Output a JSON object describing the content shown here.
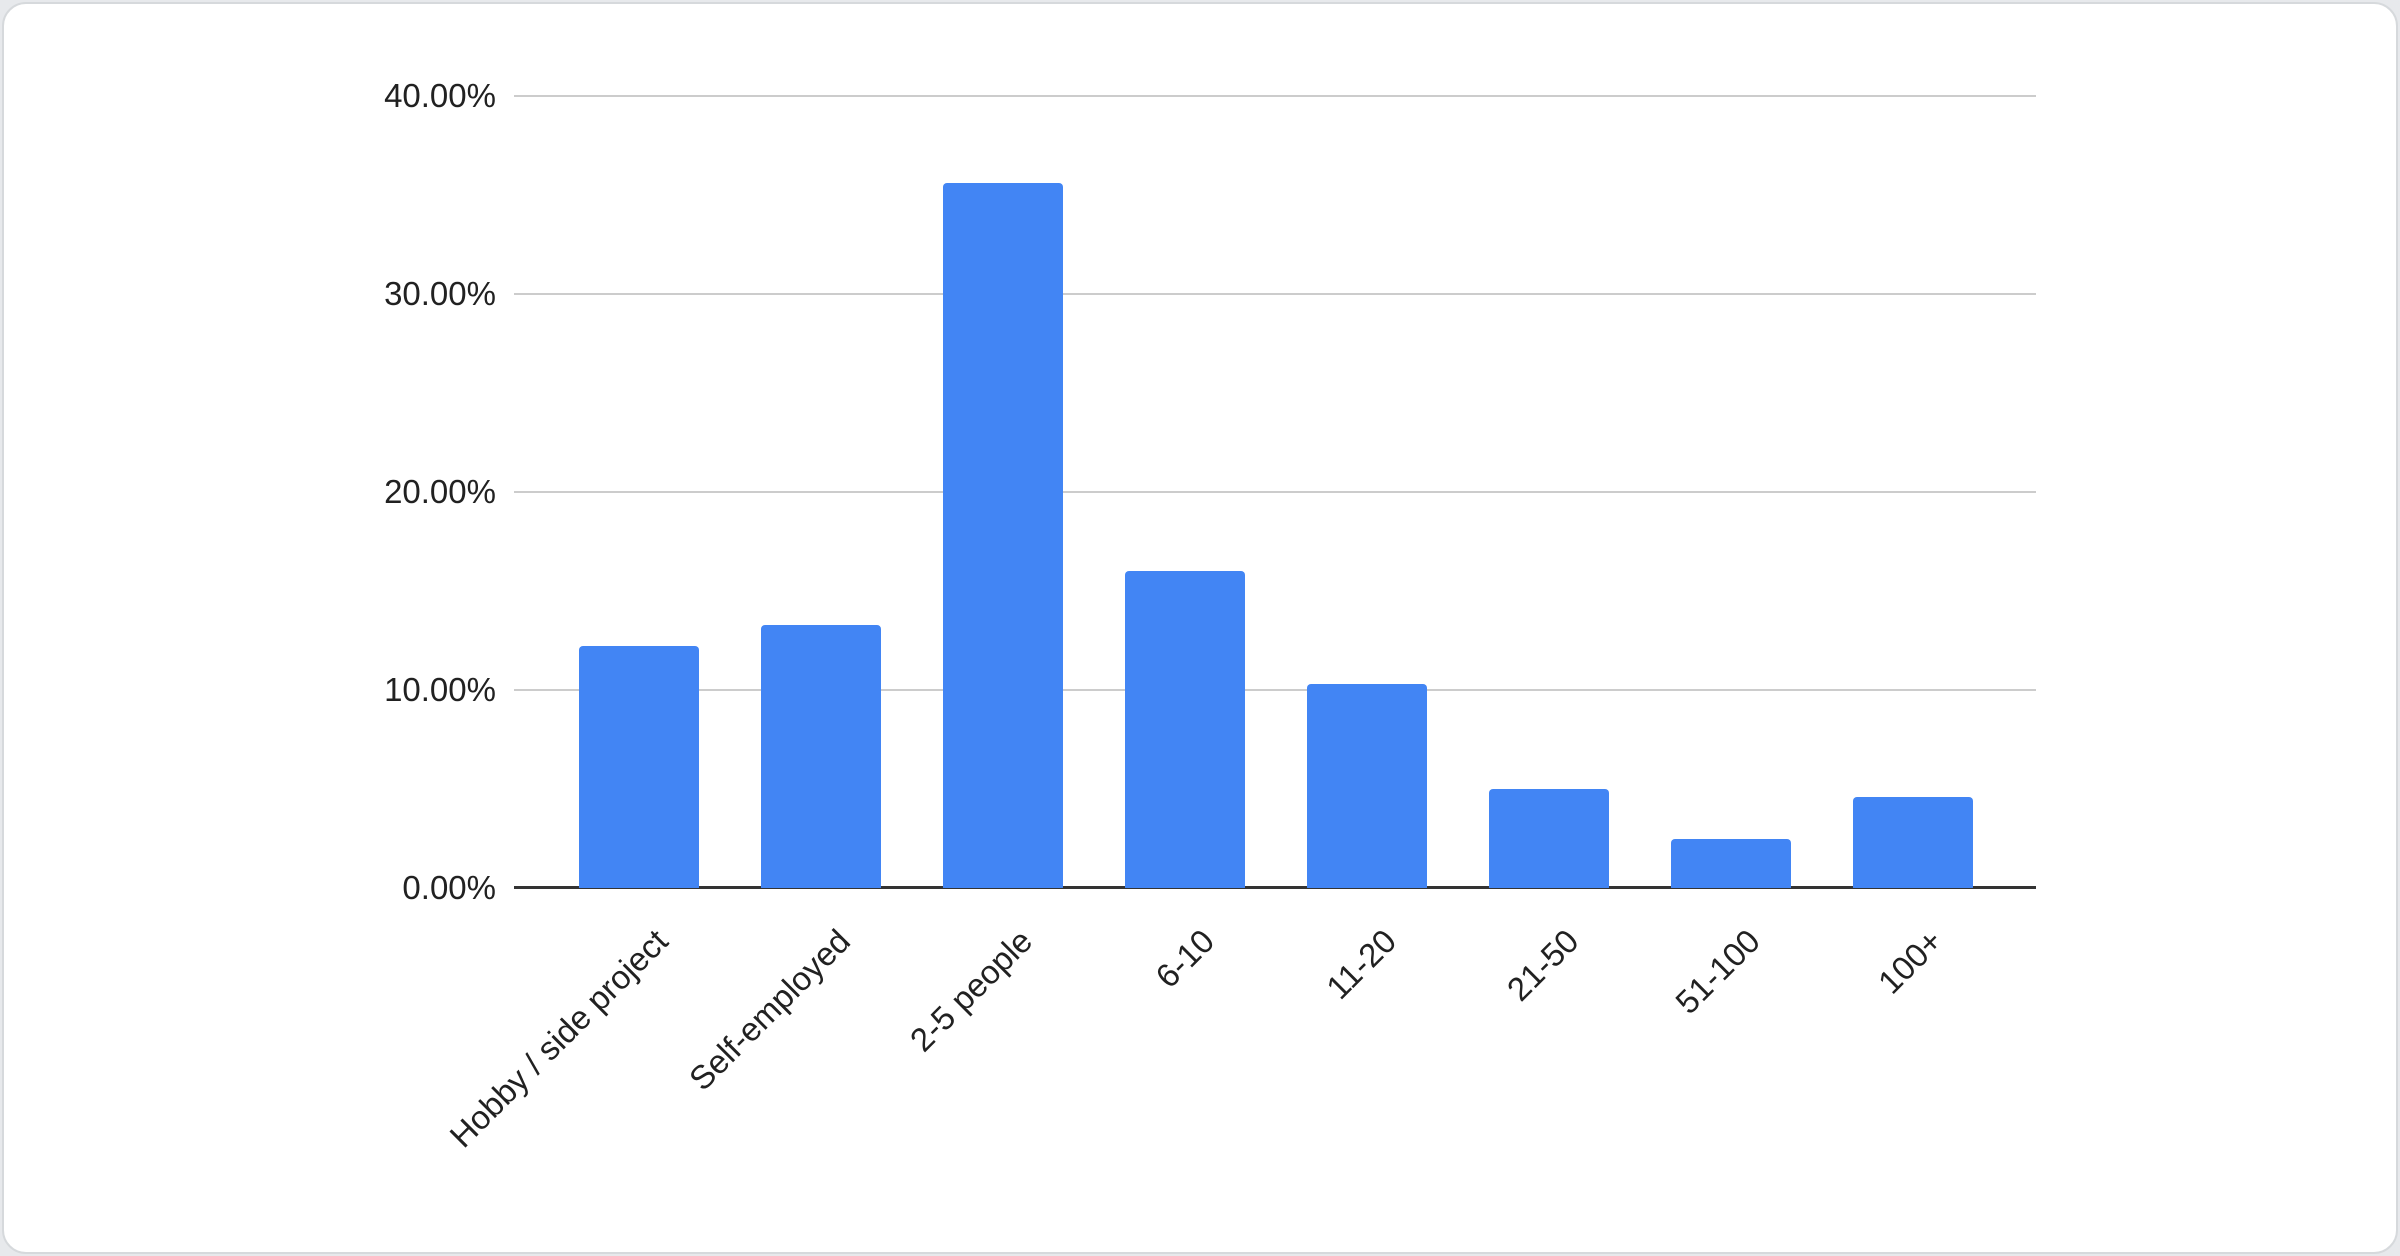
{
  "page": {
    "background": "#e7e9ec",
    "card_background": "#ffffff",
    "card_border": "#d6d9dc"
  },
  "chart_data": {
    "type": "bar",
    "title": "",
    "xlabel": "",
    "ylabel": "",
    "categories": [
      "Hobby / side project",
      "Self-employed",
      "2-5 people",
      "6-10",
      "11-20",
      "21-50",
      "51-100",
      "100+"
    ],
    "values": [
      12.2,
      13.3,
      35.6,
      16.0,
      10.3,
      5.0,
      2.5,
      4.6
    ],
    "value_unit": "%",
    "ylim": [
      0,
      40
    ],
    "y_tick_step": 10,
    "y_ticks": [
      "40.00%",
      "30.00%",
      "20.00%",
      "10.00%",
      "0.00%"
    ],
    "grid": true,
    "legend": "none",
    "bar_color": "#4285f4",
    "gridline_color": "#cccccc",
    "axis_color": "#333333",
    "label_color": "#212121"
  }
}
